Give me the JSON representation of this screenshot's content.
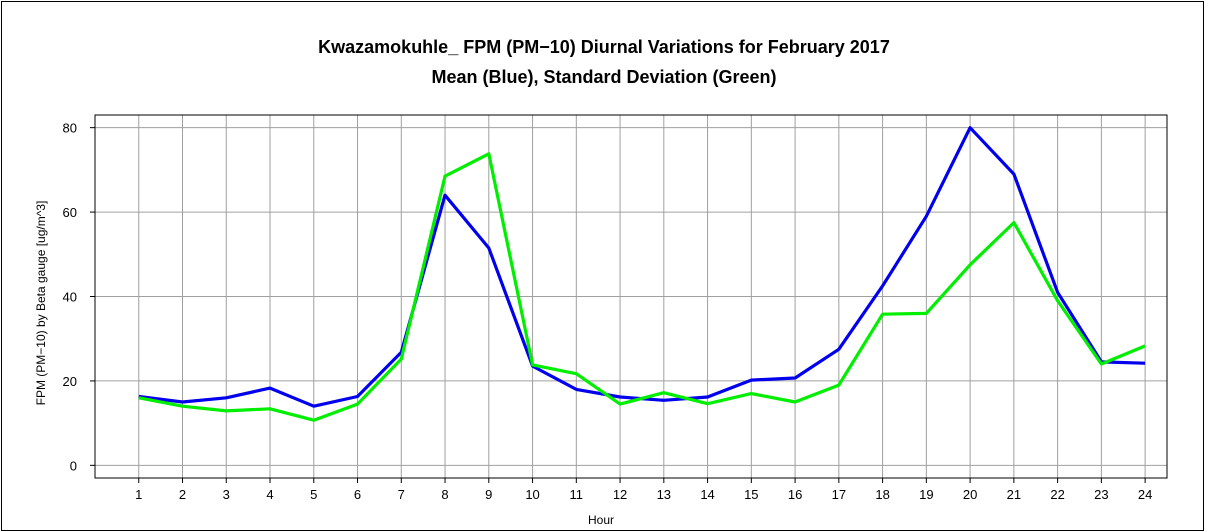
{
  "chart_data": {
    "type": "line",
    "title": "Kwazamokuhle_ FPM (PM−10) Diurnal Variations for February 2017",
    "subtitle": "Mean (Blue), Standard Deviation (Green)",
    "xlabel": "Hour",
    "ylabel": "FPM (PM−10) by Beta gauge  [ug/m^3]",
    "x": [
      1,
      2,
      3,
      4,
      5,
      6,
      7,
      8,
      9,
      10,
      11,
      12,
      13,
      14,
      15,
      16,
      17,
      18,
      19,
      20,
      21,
      22,
      23,
      24
    ],
    "xlim": [
      0,
      24.5
    ],
    "ylim": [
      -3,
      83
    ],
    "yticks": [
      0,
      20,
      40,
      60,
      80
    ],
    "grid": true,
    "series": [
      {
        "name": "Mean",
        "color": "#0000ee",
        "values": [
          16.3,
          15.0,
          16.0,
          18.3,
          14.0,
          16.3,
          26.8,
          64.0,
          51.5,
          23.5,
          18.0,
          16.2,
          15.4,
          16.2,
          20.2,
          20.7,
          27.5,
          42.5,
          59.0,
          80.0,
          69.0,
          41.0,
          24.5,
          24.2
        ]
      },
      {
        "name": "Standard Deviation",
        "color": "#00ee00",
        "values": [
          16.0,
          14.0,
          12.9,
          13.4,
          10.7,
          14.5,
          25.2,
          68.5,
          73.8,
          23.8,
          21.7,
          14.5,
          17.2,
          14.6,
          17.0,
          15.0,
          19.0,
          35.8,
          36.0,
          47.5,
          57.5,
          39.0,
          24.0,
          28.3
        ]
      }
    ]
  }
}
